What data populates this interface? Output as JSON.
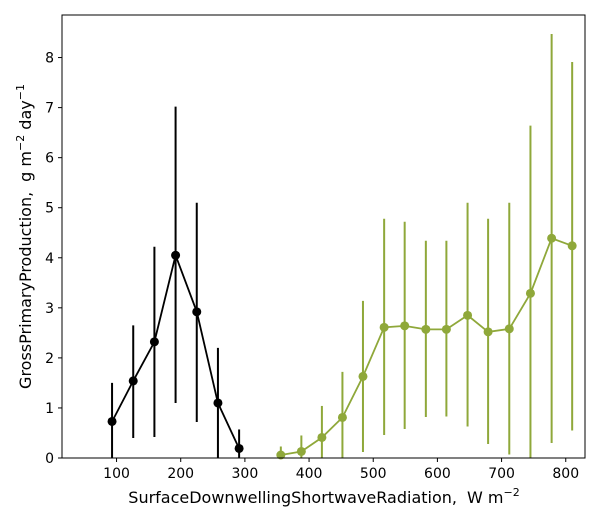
{
  "chart_data": {
    "type": "line",
    "title": "",
    "xlabel": "SurfaceDownwellingShortwaveRadiation,",
    "xlabel_unit": "W m",
    "xlabel_unit_exp": "−2",
    "ylabel": "GrossPrimaryProduction,",
    "ylabel_unit_1": "g m",
    "ylabel_unit_exp_1": "−2",
    "ylabel_unit_2": " day",
    "ylabel_unit_exp_2": "−1",
    "xlim": [
      15,
      830
    ],
    "ylim": [
      0,
      8.85
    ],
    "xticks": [
      {
        "value": 100,
        "label": "100"
      },
      {
        "value": 200,
        "label": "200"
      },
      {
        "value": 300,
        "label": "300"
      },
      {
        "value": 400,
        "label": "400"
      },
      {
        "value": 500,
        "label": "500"
      },
      {
        "value": 600,
        "label": "600"
      },
      {
        "value": 700,
        "label": "700"
      },
      {
        "value": 800,
        "label": "800"
      }
    ],
    "yticks": [
      {
        "value": 0,
        "label": "0"
      },
      {
        "value": 1,
        "label": "1"
      },
      {
        "value": 2,
        "label": "2"
      },
      {
        "value": 3,
        "label": "3"
      },
      {
        "value": 4,
        "label": "4"
      },
      {
        "value": 5,
        "label": "5"
      },
      {
        "value": 6,
        "label": "6"
      },
      {
        "value": 7,
        "label": "7"
      },
      {
        "value": 8,
        "label": "8"
      }
    ],
    "grid": false,
    "legend": "none",
    "series": [
      {
        "color": "#000000",
        "points": [
          {
            "x": 93,
            "y": 0.73,
            "low": 0.0,
            "high": 1.5
          },
          {
            "x": 126,
            "y": 1.54,
            "low": 0.4,
            "high": 2.65
          },
          {
            "x": 159,
            "y": 2.32,
            "low": 0.42,
            "high": 4.22
          },
          {
            "x": 192,
            "y": 4.05,
            "low": 1.1,
            "high": 7.02
          },
          {
            "x": 225,
            "y": 2.92,
            "low": 0.72,
            "high": 5.1
          },
          {
            "x": 258,
            "y": 1.1,
            "low": 0.0,
            "high": 2.2
          },
          {
            "x": 291,
            "y": 0.19,
            "low": 0.0,
            "high": 0.57
          }
        ]
      },
      {
        "color": "#8fa83a",
        "points": [
          {
            "x": 356,
            "y": 0.06,
            "low": 0.0,
            "high": 0.23
          },
          {
            "x": 388,
            "y": 0.13,
            "low": 0.0,
            "high": 0.45
          },
          {
            "x": 420,
            "y": 0.41,
            "low": 0.0,
            "high": 1.04
          },
          {
            "x": 452,
            "y": 0.81,
            "low": 0.0,
            "high": 1.72
          },
          {
            "x": 484,
            "y": 1.63,
            "low": 0.12,
            "high": 3.14
          },
          {
            "x": 517,
            "y": 2.61,
            "low": 0.46,
            "high": 4.78
          },
          {
            "x": 549,
            "y": 2.64,
            "low": 0.58,
            "high": 4.72
          },
          {
            "x": 582,
            "y": 2.57,
            "low": 0.82,
            "high": 4.34
          },
          {
            "x": 614,
            "y": 2.57,
            "low": 0.83,
            "high": 4.34
          },
          {
            "x": 647,
            "y": 2.85,
            "low": 0.63,
            "high": 5.1
          },
          {
            "x": 679,
            "y": 2.52,
            "low": 0.28,
            "high": 4.78
          },
          {
            "x": 712,
            "y": 2.58,
            "low": 0.07,
            "high": 5.1
          },
          {
            "x": 745,
            "y": 3.29,
            "low": 0.0,
            "high": 6.64
          },
          {
            "x": 778,
            "y": 4.39,
            "low": 0.3,
            "high": 8.47
          },
          {
            "x": 810,
            "y": 4.24,
            "low": 0.55,
            "high": 7.91
          }
        ]
      }
    ]
  }
}
